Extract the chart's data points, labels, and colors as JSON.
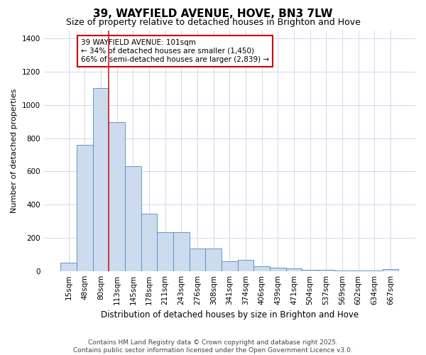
{
  "title": "39, WAYFIELD AVENUE, HOVE, BN3 7LW",
  "subtitle": "Size of property relative to detached houses in Brighton and Hove",
  "xlabel": "Distribution of detached houses by size in Brighton and Hove",
  "ylabel": "Number of detached properties",
  "categories": [
    "15sqm",
    "48sqm",
    "80sqm",
    "113sqm",
    "145sqm",
    "178sqm",
    "211sqm",
    "243sqm",
    "276sqm",
    "308sqm",
    "341sqm",
    "374sqm",
    "406sqm",
    "439sqm",
    "471sqm",
    "504sqm",
    "537sqm",
    "569sqm",
    "602sqm",
    "634sqm",
    "667sqm"
  ],
  "values": [
    50,
    760,
    1100,
    895,
    630,
    345,
    235,
    235,
    135,
    135,
    60,
    68,
    30,
    20,
    15,
    6,
    8,
    5,
    2,
    5,
    10
  ],
  "bar_color": "#ccdcee",
  "bar_edge_color": "#5588bb",
  "background_color": "#ffffff",
  "grid_color": "#c8d4e8",
  "annotation_text": "39 WAYFIELD AVENUE: 101sqm\n← 34% of detached houses are smaller (1,450)\n66% of semi-detached houses are larger (2,839) →",
  "annotation_box_color": "#ffffff",
  "annotation_box_edge": "#cc0000",
  "red_line_bar_index": 2,
  "ylim": [
    0,
    1450
  ],
  "yticks": [
    0,
    200,
    400,
    600,
    800,
    1000,
    1200,
    1400
  ],
  "footnote1": "Contains HM Land Registry data © Crown copyright and database right 2025.",
  "footnote2": "Contains public sector information licensed under the Open Government Licence v3.0.",
  "title_fontsize": 11,
  "subtitle_fontsize": 9,
  "xlabel_fontsize": 8.5,
  "ylabel_fontsize": 8,
  "tick_fontsize": 7.5,
  "annot_fontsize": 7.5,
  "footnote_fontsize": 6.5
}
